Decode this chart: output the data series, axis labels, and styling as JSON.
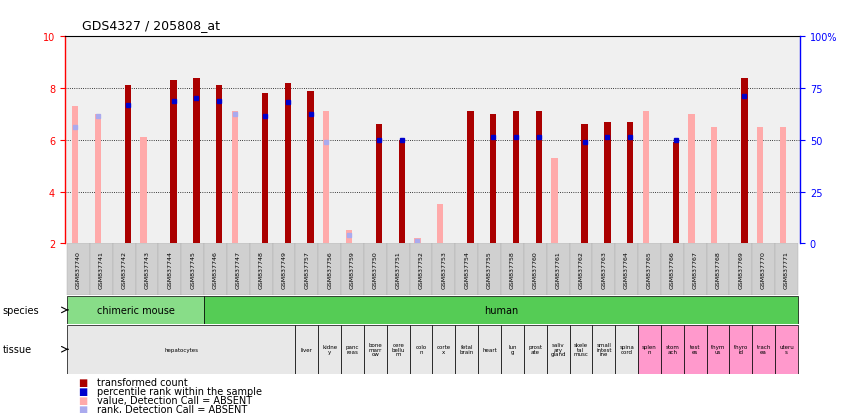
{
  "title": "GDS4327 / 205808_at",
  "samples": [
    "GSM837740",
    "GSM837741",
    "GSM837742",
    "GSM837743",
    "GSM837744",
    "GSM837745",
    "GSM837746",
    "GSM837747",
    "GSM837748",
    "GSM837749",
    "GSM837757",
    "GSM837756",
    "GSM837759",
    "GSM837750",
    "GSM837751",
    "GSM837752",
    "GSM837753",
    "GSM837754",
    "GSM837755",
    "GSM837758",
    "GSM837760",
    "GSM837761",
    "GSM837762",
    "GSM837763",
    "GSM837764",
    "GSM837765",
    "GSM837766",
    "GSM837767",
    "GSM837768",
    "GSM837769",
    "GSM837770",
    "GSM837771"
  ],
  "value_present": [
    null,
    null,
    8.1,
    null,
    8.3,
    8.4,
    8.1,
    null,
    7.8,
    8.2,
    7.9,
    null,
    null,
    6.6,
    6.0,
    null,
    null,
    7.1,
    7.0,
    7.1,
    7.1,
    null,
    6.6,
    6.7,
    6.7,
    null,
    5.9,
    null,
    null,
    8.4,
    null,
    null
  ],
  "value_absent": [
    7.3,
    7.0,
    null,
    6.1,
    null,
    null,
    null,
    7.1,
    null,
    null,
    null,
    7.1,
    2.5,
    null,
    null,
    2.2,
    3.5,
    null,
    null,
    null,
    null,
    5.3,
    null,
    null,
    null,
    7.1,
    null,
    7.0,
    6.5,
    null,
    6.5,
    6.5
  ],
  "rank_present": [
    null,
    null,
    7.35,
    null,
    7.5,
    7.6,
    7.5,
    null,
    6.9,
    7.45,
    7.0,
    null,
    null,
    6.0,
    6.0,
    null,
    null,
    null,
    6.1,
    6.1,
    6.1,
    null,
    5.9,
    6.1,
    6.1,
    null,
    6.0,
    null,
    null,
    7.7,
    null,
    null
  ],
  "rank_absent": [
    6.5,
    6.9,
    null,
    null,
    null,
    null,
    null,
    7.0,
    null,
    null,
    null,
    5.9,
    2.3,
    null,
    null,
    2.1,
    null,
    null,
    null,
    null,
    null,
    null,
    null,
    null,
    null,
    null,
    null,
    null,
    null,
    null,
    null,
    null
  ],
  "species_blocks": [
    {
      "label": "chimeric mouse",
      "start": 0,
      "end": 5,
      "color": "#88dd88"
    },
    {
      "label": "human",
      "start": 6,
      "end": 31,
      "color": "#55cc55"
    }
  ],
  "tissue_blocks": [
    {
      "label": "hepatocytes",
      "start": 0,
      "end": 9,
      "color": "#e8e8e8"
    },
    {
      "label": "liver",
      "start": 10,
      "end": 10,
      "color": "#e8e8e8"
    },
    {
      "label": "kidne\ny",
      "start": 11,
      "end": 11,
      "color": "#e8e8e8"
    },
    {
      "label": "panc\nreas",
      "start": 12,
      "end": 12,
      "color": "#e8e8e8"
    },
    {
      "label": "bone\nmarr\now",
      "start": 13,
      "end": 13,
      "color": "#e8e8e8"
    },
    {
      "label": "cere\nbellu\nm",
      "start": 14,
      "end": 14,
      "color": "#e8e8e8"
    },
    {
      "label": "colo\nn",
      "start": 15,
      "end": 15,
      "color": "#e8e8e8"
    },
    {
      "label": "corte\nx",
      "start": 16,
      "end": 16,
      "color": "#e8e8e8"
    },
    {
      "label": "fetal\nbrain",
      "start": 17,
      "end": 17,
      "color": "#e8e8e8"
    },
    {
      "label": "heart",
      "start": 18,
      "end": 18,
      "color": "#e8e8e8"
    },
    {
      "label": "lun\ng",
      "start": 19,
      "end": 19,
      "color": "#e8e8e8"
    },
    {
      "label": "prost\nate",
      "start": 20,
      "end": 20,
      "color": "#e8e8e8"
    },
    {
      "label": "saliv\nary\ngland",
      "start": 21,
      "end": 21,
      "color": "#e8e8e8"
    },
    {
      "label": "skele\ntal\nmusc",
      "start": 22,
      "end": 22,
      "color": "#e8e8e8"
    },
    {
      "label": "small\nintest\nine",
      "start": 23,
      "end": 23,
      "color": "#e8e8e8"
    },
    {
      "label": "spina\ncord",
      "start": 24,
      "end": 24,
      "color": "#e8e8e8"
    },
    {
      "label": "splen\nn",
      "start": 25,
      "end": 25,
      "color": "#ff99cc"
    },
    {
      "label": "stom\nach",
      "start": 26,
      "end": 26,
      "color": "#ff99cc"
    },
    {
      "label": "test\nes",
      "start": 27,
      "end": 27,
      "color": "#ff99cc"
    },
    {
      "label": "thym\nus",
      "start": 28,
      "end": 28,
      "color": "#ff99cc"
    },
    {
      "label": "thyro\nid",
      "start": 29,
      "end": 29,
      "color": "#ff99cc"
    },
    {
      "label": "trach\nea",
      "start": 30,
      "end": 30,
      "color": "#ff99cc"
    },
    {
      "label": "uteru\ns",
      "start": 31,
      "end": 31,
      "color": "#ff99cc"
    }
  ],
  "ylim": [
    2,
    10
  ],
  "bar_color_present": "#aa0000",
  "bar_color_absent": "#ffaaaa",
  "rank_color_present": "#0000cc",
  "rank_color_absent": "#aaaaee",
  "plot_bg": "#f0f0f0",
  "tick_bg": "#d0d0d0"
}
